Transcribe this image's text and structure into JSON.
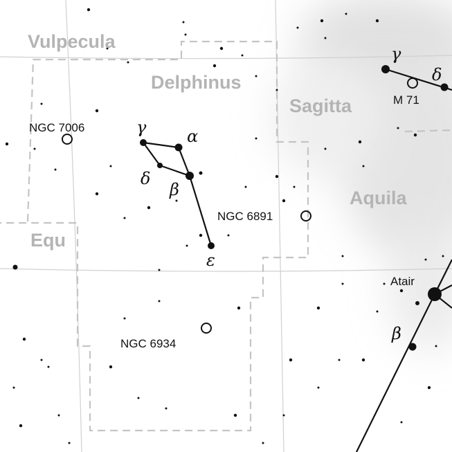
{
  "constellations": [
    {
      "name": "Vulpecula"
    },
    {
      "name": "Delphinus"
    },
    {
      "name": "Sagitta"
    },
    {
      "name": "Aquila"
    },
    {
      "name": "Equ"
    }
  ],
  "objects": [
    {
      "label": "NGC 7006"
    },
    {
      "label": "NGC 6891"
    },
    {
      "label": "NGC 6934"
    },
    {
      "label": "M 71"
    }
  ],
  "stars": [
    {
      "label": "γ"
    },
    {
      "label": "α"
    },
    {
      "label": "δ"
    },
    {
      "label": "β"
    },
    {
      "label": "ε"
    },
    {
      "label": "γ"
    },
    {
      "label": "δ"
    },
    {
      "label": "Atair"
    },
    {
      "label": "β"
    }
  ]
}
